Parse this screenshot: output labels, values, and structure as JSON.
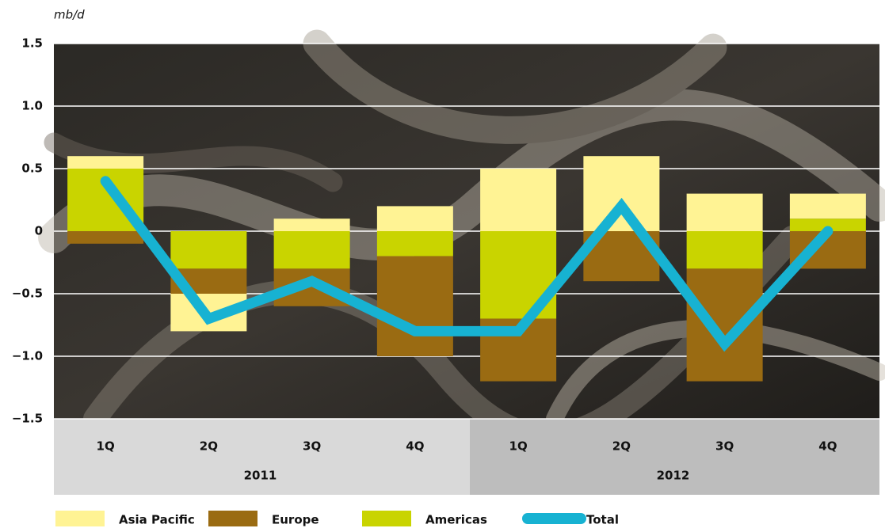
{
  "chart_data": {
    "type": "stacked-bar-line",
    "y_unit": "mb/d",
    "categories": [
      "1Q",
      "2Q",
      "3Q",
      "4Q",
      "1Q",
      "2Q",
      "3Q",
      "4Q"
    ],
    "years": [
      "2011",
      "2012"
    ],
    "series": [
      {
        "name": "Asia Pacific",
        "color": "#fff394",
        "values": [
          0.1,
          -0.3,
          0.1,
          0.2,
          0.5,
          0.6,
          0.3,
          0.2
        ]
      },
      {
        "name": "Europe",
        "color": "#9a6b12",
        "values": [
          -0.1,
          -0.2,
          -0.3,
          -0.8,
          -0.5,
          -0.4,
          -0.9,
          -0.3
        ]
      },
      {
        "name": "Americas",
        "color": "#c9d400",
        "values": [
          0.5,
          -0.3,
          -0.3,
          -0.2,
          -0.7,
          0,
          -0.3,
          0.1
        ]
      },
      {
        "name": "Total",
        "color": "#17b2d2",
        "type": "line",
        "values": [
          0.4,
          -0.7,
          -0.4,
          -0.8,
          -0.8,
          0.2,
          -0.9,
          0
        ]
      }
    ],
    "ylim": [
      -1.5,
      1.5
    ],
    "yticks": [
      {
        "value": -1.5,
        "label": "−1.5"
      },
      {
        "value": -1.0,
        "label": "−1.0"
      },
      {
        "value": -0.5,
        "label": "−0.5"
      },
      0,
      0.5,
      {
        "value": 1.0,
        "label": "1.0"
      },
      1.5
    ],
    "grid": true
  }
}
